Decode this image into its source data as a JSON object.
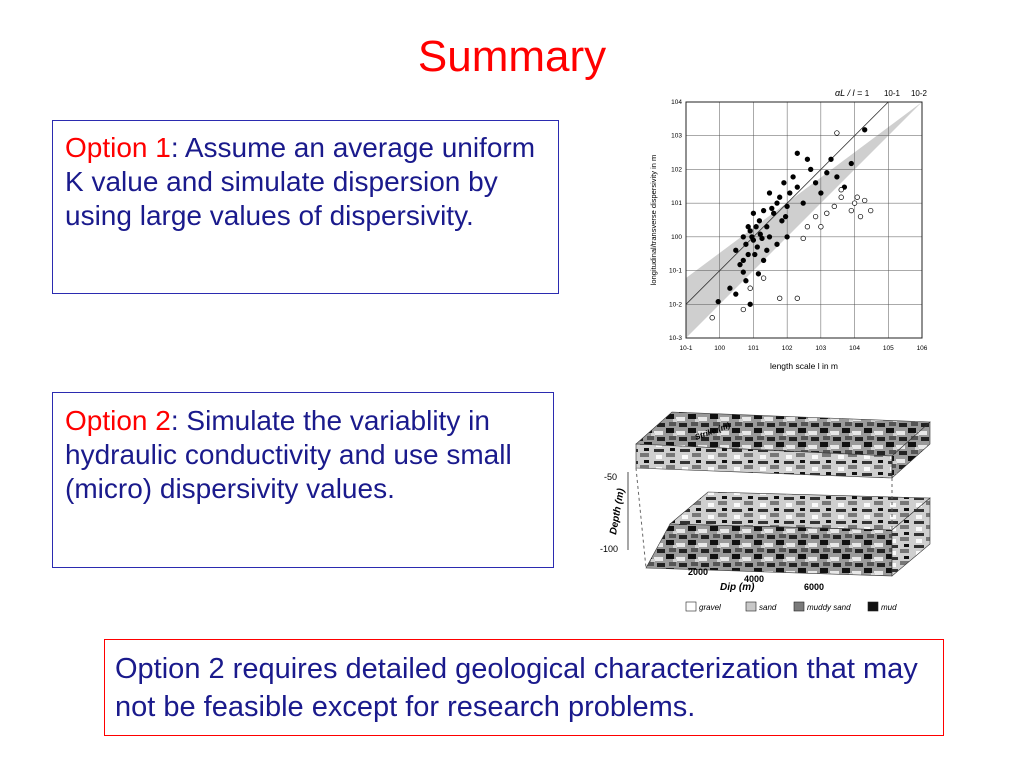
{
  "slide": {
    "title": "Summary"
  },
  "option1": {
    "label": "Option 1",
    "colon": ":",
    "text": "  Assume an average uniform K value and simulate dispersion by using large values of dispersivity."
  },
  "option2": {
    "label": "Option 2",
    "colon": ":",
    "text": "  Simulate the variablity in hydraulic conductivity and use small (micro) dispersivity values."
  },
  "conclusion": {
    "text": "Option 2 requires detailed geological characterization that may not be feasible except for research problems."
  },
  "chart_data": {
    "type": "scatter",
    "xlabel": "length scale l in m",
    "ylabel": "longitudinal/transverse dispersivity in m",
    "x_scale": "log",
    "y_scale": "log",
    "xlim": [
      0.1,
      1000000
    ],
    "ylim": [
      0.001,
      10000
    ],
    "x_ticks": [
      "10-1",
      "100",
      "101",
      "102",
      "103",
      "104",
      "105",
      "106"
    ],
    "y_ticks": [
      "10-3",
      "10-2",
      "10-1",
      "100",
      "101",
      "102",
      "103",
      "104"
    ],
    "top_annotation": "αL / l =",
    "top_ticks": [
      "1",
      "10-1",
      "10-2"
    ],
    "grid": true,
    "series": [
      {
        "marker": "filled",
        "points": [
          [
            0.9,
            0.012
          ],
          [
            2,
            0.03
          ],
          [
            3,
            0.02
          ],
          [
            5,
            0.2
          ],
          [
            5,
            1
          ],
          [
            6,
            0.6
          ],
          [
            7,
            2
          ],
          [
            7,
            0.3
          ],
          [
            8,
            1.5
          ],
          [
            9,
            1
          ],
          [
            10,
            0.8
          ],
          [
            10,
            5
          ],
          [
            12,
            2
          ],
          [
            13,
            0.5
          ],
          [
            15,
            3
          ],
          [
            16,
            1.2
          ],
          [
            18,
            0.9
          ],
          [
            20,
            6
          ],
          [
            20,
            0.2
          ],
          [
            25,
            2
          ],
          [
            30,
            1
          ],
          [
            30,
            20
          ],
          [
            40,
            5
          ],
          [
            50,
            10
          ],
          [
            50,
            0.6
          ],
          [
            70,
            3
          ],
          [
            80,
            40
          ],
          [
            100,
            8
          ],
          [
            100,
            1
          ],
          [
            120,
            20
          ],
          [
            150,
            60
          ],
          [
            200,
            30
          ],
          [
            300,
            10
          ],
          [
            500,
            100
          ],
          [
            700,
            40
          ],
          [
            1000,
            20
          ],
          [
            1500,
            80
          ],
          [
            2000,
            200
          ],
          [
            3000,
            60
          ],
          [
            5000,
            30
          ],
          [
            8000,
            150
          ],
          [
            20000,
            1500
          ],
          [
            6,
            0.05
          ],
          [
            5,
            0.09
          ],
          [
            8,
            0.01
          ],
          [
            3,
            0.4
          ],
          [
            4,
            0.15
          ],
          [
            11,
            0.3
          ],
          [
            14,
            0.08
          ],
          [
            25,
            0.4
          ],
          [
            35,
            7
          ],
          [
            60,
            15
          ],
          [
            90,
            4
          ],
          [
            200,
            300
          ],
          [
            400,
            200
          ]
        ]
      },
      {
        "marker": "open",
        "points": [
          [
            0.6,
            0.004
          ],
          [
            5,
            0.007
          ],
          [
            8,
            0.03
          ],
          [
            20,
            0.06
          ],
          [
            60,
            0.015
          ],
          [
            200,
            0.015
          ],
          [
            300,
            0.9
          ],
          [
            400,
            2
          ],
          [
            700,
            4
          ],
          [
            1000,
            2
          ],
          [
            1500,
            5
          ],
          [
            2500,
            8
          ],
          [
            4000,
            15
          ],
          [
            4000,
            25
          ],
          [
            8000,
            6
          ],
          [
            10000,
            10
          ],
          [
            12000,
            15
          ],
          [
            15000,
            4
          ],
          [
            20000,
            12
          ],
          [
            30000,
            6
          ],
          [
            3000,
            1200
          ]
        ]
      }
    ]
  },
  "legend": {
    "items": [
      {
        "label": "gravel",
        "color": "#ffffff"
      },
      {
        "label": "sand",
        "color": "#c8c8c8"
      },
      {
        "label": "muddy sand",
        "color": "#7a7a7a"
      },
      {
        "label": "mud",
        "color": "#111111"
      }
    ]
  },
  "block_diagram": {
    "depth_label": "Depth (m)",
    "depth_ticks": [
      "-50",
      "-100"
    ],
    "dip_label": "Dip (m)",
    "dip_ticks": [
      "2000",
      "4000",
      "6000"
    ],
    "strike_label": "Strike (m)"
  }
}
